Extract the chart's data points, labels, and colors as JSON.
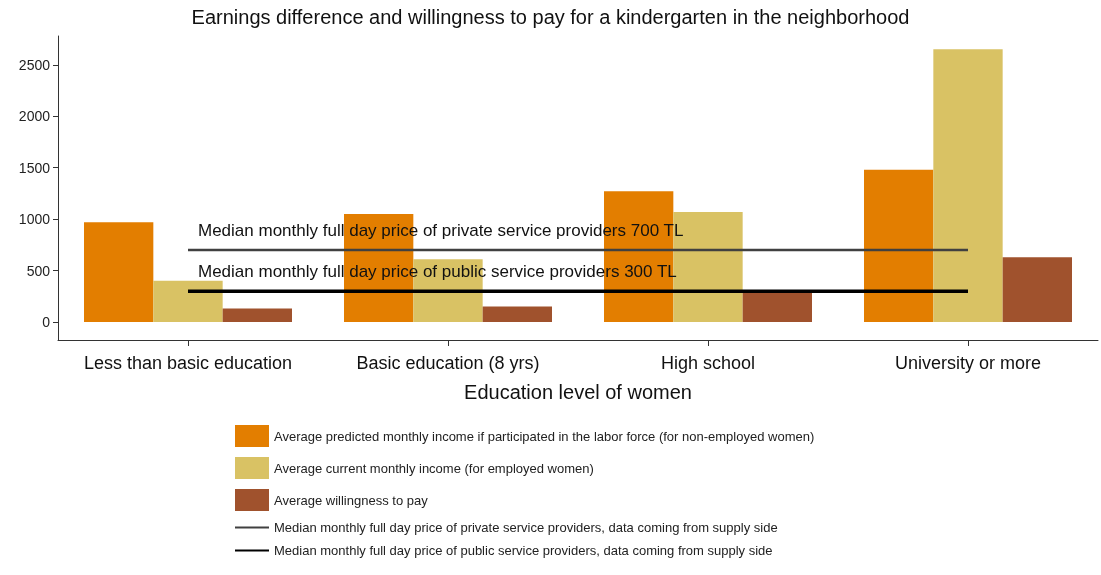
{
  "chart_data": {
    "type": "bar",
    "title": "Earnings difference and willingness to pay for a kindergarten in the neighborhood",
    "xlabel": "Education level of women",
    "categories": [
      "Less than basic education",
      "Basic education (8 yrs)",
      "High school",
      "University or more"
    ],
    "series": [
      {
        "name": "Average predicted monthly income if participated in the labor force (for non-employed women)",
        "color": "#e37e00",
        "values": [
          970,
          1050,
          1270,
          1480
        ]
      },
      {
        "name": "Average current monthly income (for employed women)",
        "color": "#d9c264",
        "values": [
          400,
          610,
          1070,
          2650
        ]
      },
      {
        "name": "Average willingness to pay",
        "color": "#a0522d",
        "values": [
          130,
          150,
          290,
          630
        ]
      },
      {
        "type": "line",
        "name": "Median monthly full day price of private service providers, data coming from supply side",
        "color": "#404040",
        "values": [
          700,
          700,
          700,
          700
        ]
      },
      {
        "type": "line",
        "name": "Median monthly full day price of public service providers, data coming from supply side",
        "color": "#000000",
        "values": [
          300,
          300,
          300,
          300
        ]
      }
    ],
    "annotations": [
      {
        "text": "Median monthly full day price of private service providers 700 TL",
        "x": "Less than basic education",
        "y": 700
      },
      {
        "text": "Median monthly full day price of public service providers 300 TL",
        "x": "Less than basic education",
        "y": 300
      }
    ],
    "ylim": [
      -175,
      2780
    ],
    "yticks": [
      0,
      500,
      1000,
      1500,
      2000,
      2500
    ],
    "grid": false,
    "legend": "bottom",
    "line_style": "solid"
  }
}
